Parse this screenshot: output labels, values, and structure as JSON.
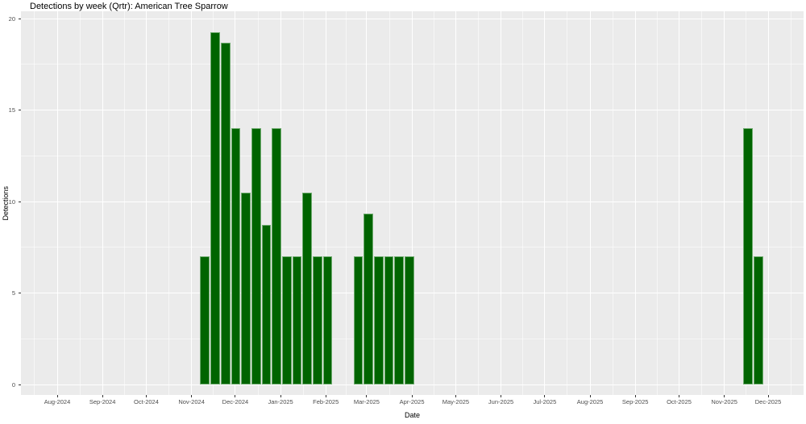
{
  "chart_data": {
    "type": "bar",
    "title": "Detections by week (Qrtr): American Tree Sparrow",
    "xlabel": "Date",
    "ylabel": "Detections",
    "ylim": [
      0,
      20
    ],
    "y_major_ticks": [
      0,
      5,
      10,
      15,
      20
    ],
    "y_minor_ticks": [
      2.5,
      7.5,
      12.5,
      17.5
    ],
    "x_tick_labels": [
      "Aug-2024",
      "Sep-2024",
      "Oct-2024",
      "Nov-2024",
      "Dec-2024",
      "Jan-2025",
      "Feb-2025",
      "Mar-2025",
      "Apr-2025",
      "May-2025",
      "Jun-2025",
      "Jul-2025",
      "Aug-2025",
      "Sep-2025",
      "Oct-2025",
      "Nov-2025",
      "Dec-2025"
    ],
    "x_tick_dates": [
      "2024-08-01",
      "2024-09-01",
      "2024-10-01",
      "2024-11-01",
      "2024-12-01",
      "2025-01-01",
      "2025-02-01",
      "2025-03-01",
      "2025-04-01",
      "2025-05-01",
      "2025-06-01",
      "2025-07-01",
      "2025-08-01",
      "2025-09-01",
      "2025-10-01",
      "2025-11-01",
      "2025-12-01"
    ],
    "x_minor_month_starts": [
      "2024-07-01",
      "2024-08-01",
      "2024-09-01",
      "2024-10-01",
      "2024-11-01",
      "2024-12-01",
      "2025-01-01",
      "2025-02-01",
      "2025-03-01",
      "2025-04-01",
      "2025-05-01",
      "2025-06-01",
      "2025-07-01",
      "2025-08-01",
      "2025-09-01",
      "2025-10-01",
      "2025-11-01",
      "2025-12-01"
    ],
    "legend": "none",
    "grid": {
      "panel_bg": "#EBEBEB",
      "major_line": "#FFFFFF",
      "minor_line": "rgba(255,255,255,0.55)"
    },
    "bar_fill": "#006400",
    "bar_edge": "#6EAA6E",
    "axis_text_color": "#4D4D4D",
    "title_color": "#000000",
    "bars": [
      {
        "week_start": "2024-11-07",
        "value": 7
      },
      {
        "week_start": "2024-11-14",
        "value": 19.25
      },
      {
        "week_start": "2024-11-21",
        "value": 18.67
      },
      {
        "week_start": "2024-11-28",
        "value": 14
      },
      {
        "week_start": "2024-12-05",
        "value": 10.5
      },
      {
        "week_start": "2024-12-12",
        "value": 14
      },
      {
        "week_start": "2024-12-19",
        "value": 8.75
      },
      {
        "week_start": "2024-12-26",
        "value": 14
      },
      {
        "week_start": "2025-01-02",
        "value": 7
      },
      {
        "week_start": "2025-01-09",
        "value": 7
      },
      {
        "week_start": "2025-01-16",
        "value": 10.5
      },
      {
        "week_start": "2025-01-23",
        "value": 7
      },
      {
        "week_start": "2025-01-30",
        "value": 7
      },
      {
        "week_start": "2025-02-20",
        "value": 7
      },
      {
        "week_start": "2025-02-27",
        "value": 9.33
      },
      {
        "week_start": "2025-03-06",
        "value": 7
      },
      {
        "week_start": "2025-03-13",
        "value": 7
      },
      {
        "week_start": "2025-03-20",
        "value": 7
      },
      {
        "week_start": "2025-03-27",
        "value": 7
      },
      {
        "week_start": "2025-11-14",
        "value": 14
      },
      {
        "week_start": "2025-11-21",
        "value": 7
      }
    ]
  }
}
